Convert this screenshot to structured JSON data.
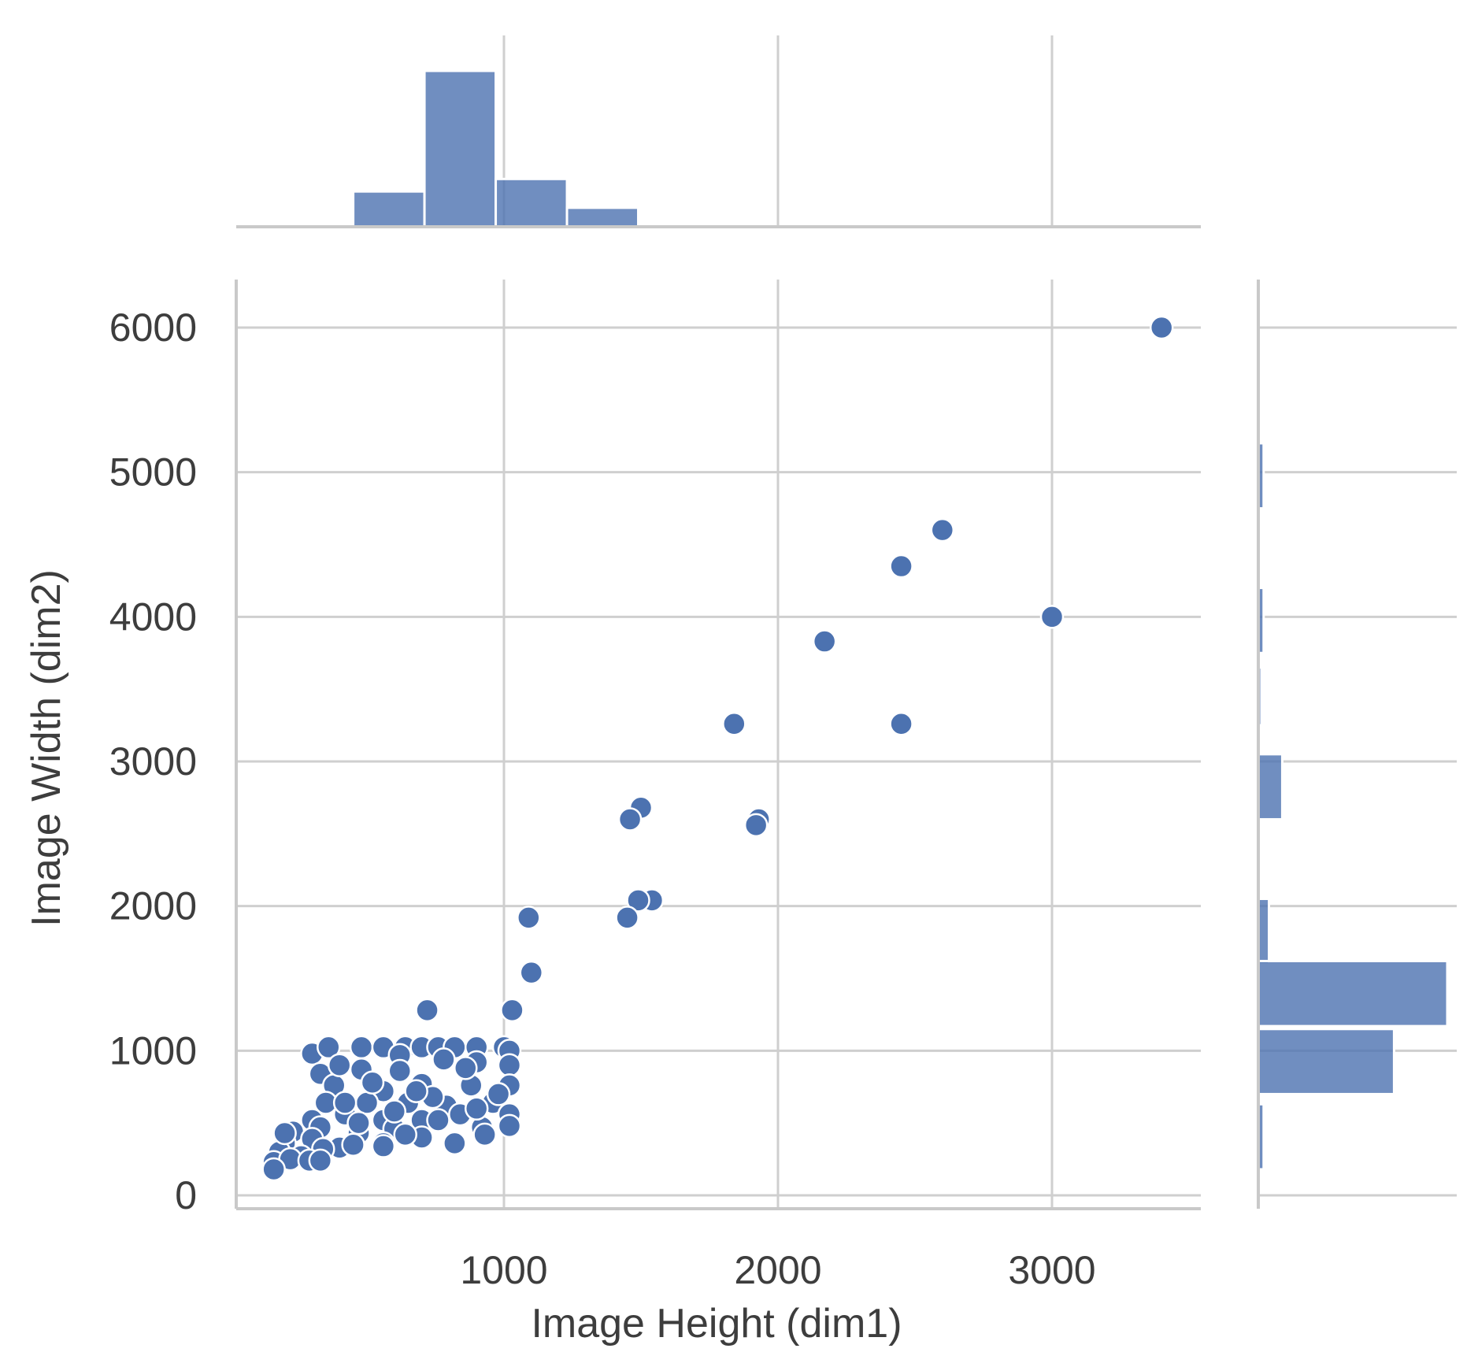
{
  "chart_data": {
    "type": "scatter",
    "xlabel": "Image Height (dim1)",
    "ylabel": "Image Width (dim2)",
    "xlim": [
      0,
      3550
    ],
    "ylim": [
      -50,
      6300
    ],
    "x_ticks": [
      1000,
      2000,
      3000
    ],
    "y_ticks": [
      0,
      1000,
      2000,
      3000,
      4000,
      5000,
      6000
    ],
    "grid": true,
    "color": "#4c72b0",
    "scatter_points": [
      [
        3400,
        6000
      ],
      [
        2600,
        4600
      ],
      [
        2450,
        4350
      ],
      [
        3000,
        4000
      ],
      [
        2170,
        3830
      ],
      [
        1840,
        3260
      ],
      [
        2450,
        3260
      ],
      [
        1500,
        2680
      ],
      [
        1460,
        2600
      ],
      [
        1930,
        2600
      ],
      [
        1920,
        2560
      ],
      [
        1540,
        2040
      ],
      [
        1490,
        2040
      ],
      [
        1450,
        1920
      ],
      [
        1090,
        1920
      ],
      [
        1100,
        1540
      ],
      [
        1030,
        1280
      ],
      [
        720,
        1280
      ],
      [
        300,
        980
      ],
      [
        360,
        1024
      ],
      [
        480,
        1024
      ],
      [
        560,
        1024
      ],
      [
        640,
        1024
      ],
      [
        700,
        1024
      ],
      [
        760,
        1024
      ],
      [
        820,
        1024
      ],
      [
        900,
        1024
      ],
      [
        1000,
        1024
      ],
      [
        1020,
        1000
      ],
      [
        330,
        840
      ],
      [
        480,
        870
      ],
      [
        620,
        970
      ],
      [
        900,
        920
      ],
      [
        1020,
        900
      ],
      [
        380,
        760
      ],
      [
        560,
        720
      ],
      [
        700,
        770
      ],
      [
        880,
        760
      ],
      [
        1020,
        760
      ],
      [
        350,
        640
      ],
      [
        500,
        640
      ],
      [
        650,
        640
      ],
      [
        790,
        620
      ],
      [
        960,
        640
      ],
      [
        1020,
        560
      ],
      [
        300,
        520
      ],
      [
        420,
        560
      ],
      [
        560,
        520
      ],
      [
        700,
        520
      ],
      [
        840,
        560
      ],
      [
        1020,
        480
      ],
      [
        230,
        440
      ],
      [
        330,
        470
      ],
      [
        470,
        430
      ],
      [
        600,
        460
      ],
      [
        760,
        520
      ],
      [
        920,
        470
      ],
      [
        200,
        360
      ],
      [
        300,
        390
      ],
      [
        400,
        330
      ],
      [
        560,
        360
      ],
      [
        700,
        400
      ],
      [
        820,
        360
      ],
      [
        930,
        420
      ],
      [
        180,
        300
      ],
      [
        260,
        270
      ],
      [
        340,
        320
      ],
      [
        450,
        350
      ],
      [
        560,
        340
      ],
      [
        640,
        420
      ],
      [
        160,
        230
      ],
      [
        220,
        250
      ],
      [
        290,
        240
      ],
      [
        330,
        240
      ],
      [
        160,
        180
      ],
      [
        200,
        430
      ],
      [
        420,
        640
      ],
      [
        520,
        780
      ],
      [
        620,
        860
      ],
      [
        740,
        680
      ],
      [
        860,
        880
      ],
      [
        980,
        700
      ],
      [
        400,
        900
      ],
      [
        600,
        580
      ],
      [
        680,
        720
      ],
      [
        780,
        940
      ],
      [
        900,
        600
      ],
      [
        470,
        500
      ]
    ],
    "x_hist": {
      "bin_edges": [
        450,
        710,
        970,
        1230,
        1490
      ],
      "counts": [
        65,
        287,
        88,
        35
      ]
    },
    "y_hist": {
      "bins": [
        {
          "from": 4750,
          "to": 5200,
          "count": 2
        },
        {
          "from": 3750,
          "to": 4200,
          "count": 2
        },
        {
          "from": 3250,
          "to": 3650,
          "count": 1
        },
        {
          "from": 2600,
          "to": 3050,
          "count": 9
        },
        {
          "from": 1600,
          "to": 2050,
          "count": 4
        },
        {
          "from": 1170,
          "to": 1620,
          "count": 71
        },
        {
          "from": 700,
          "to": 1150,
          "count": 51
        },
        {
          "from": 180,
          "to": 630,
          "count": 2
        }
      ]
    }
  }
}
